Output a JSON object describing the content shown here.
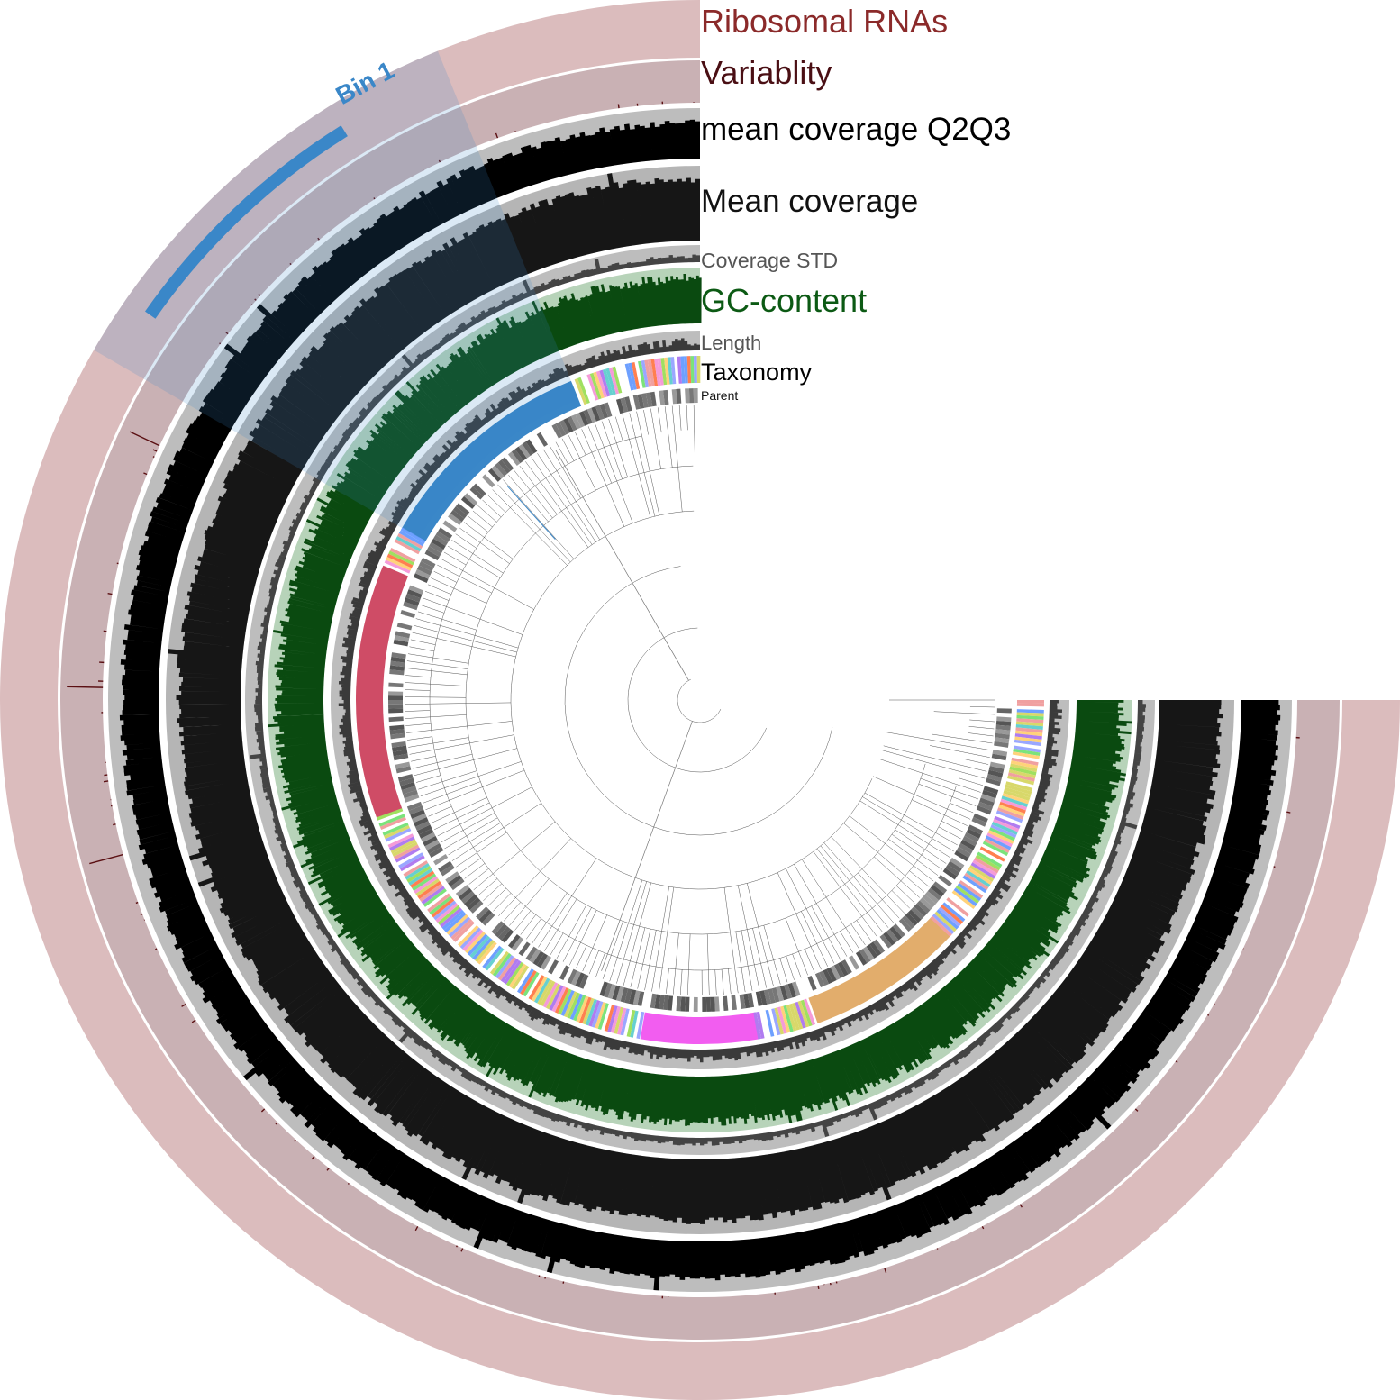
{
  "layers": [
    {
      "id": "ribosomal-rnas",
      "label": "Ribosomal RNAs",
      "color": "#8b2a2a",
      "track_color": "#dbbcbd",
      "bar_color": "#5a0f12"
    },
    {
      "id": "variability",
      "label": "Variablity",
      "color": "#4a0f14",
      "track_color": "#c9b1b4",
      "bar_color": "#5a0f12"
    },
    {
      "id": "mean-coverage-q2q3",
      "label": "mean coverage Q2Q3",
      "color": "#000000",
      "track_color": "#bdbdbd",
      "bar_color": "#000000"
    },
    {
      "id": "mean-coverage",
      "label": "Mean coverage",
      "color": "#111111",
      "track_color": "#b5b5b5",
      "bar_color": "#161616"
    },
    {
      "id": "coverage-std",
      "label": "Coverage STD",
      "color": "#555555",
      "track_color": "#bdbdbd",
      "bar_color": "#444444"
    },
    {
      "id": "gc-content",
      "label": "GC-content",
      "color": "#0c5a14",
      "track_color": "#b7d3b9",
      "bar_color": "#0a4a10"
    },
    {
      "id": "length",
      "label": "Length",
      "color": "#555555",
      "track_color": "#bdbdbd",
      "bar_color": "#3a3a3a"
    },
    {
      "id": "taxonomy",
      "label": "Taxonomy",
      "color": "#000000",
      "track_color": "#ffffff",
      "bar_color": "#888888"
    },
    {
      "id": "parent",
      "label": "Parent",
      "color": "#111111",
      "track_color": "#ffffff",
      "bar_color": "#777777"
    }
  ],
  "bins": [
    {
      "label": "Bin 1",
      "color": "#3a87c8"
    }
  ],
  "taxonomy_groups": [
    {
      "color": "#3a87c8"
    },
    {
      "color": "#cf4c66"
    },
    {
      "color": "#f25df0"
    },
    {
      "color": "#e2ad6c"
    }
  ]
}
